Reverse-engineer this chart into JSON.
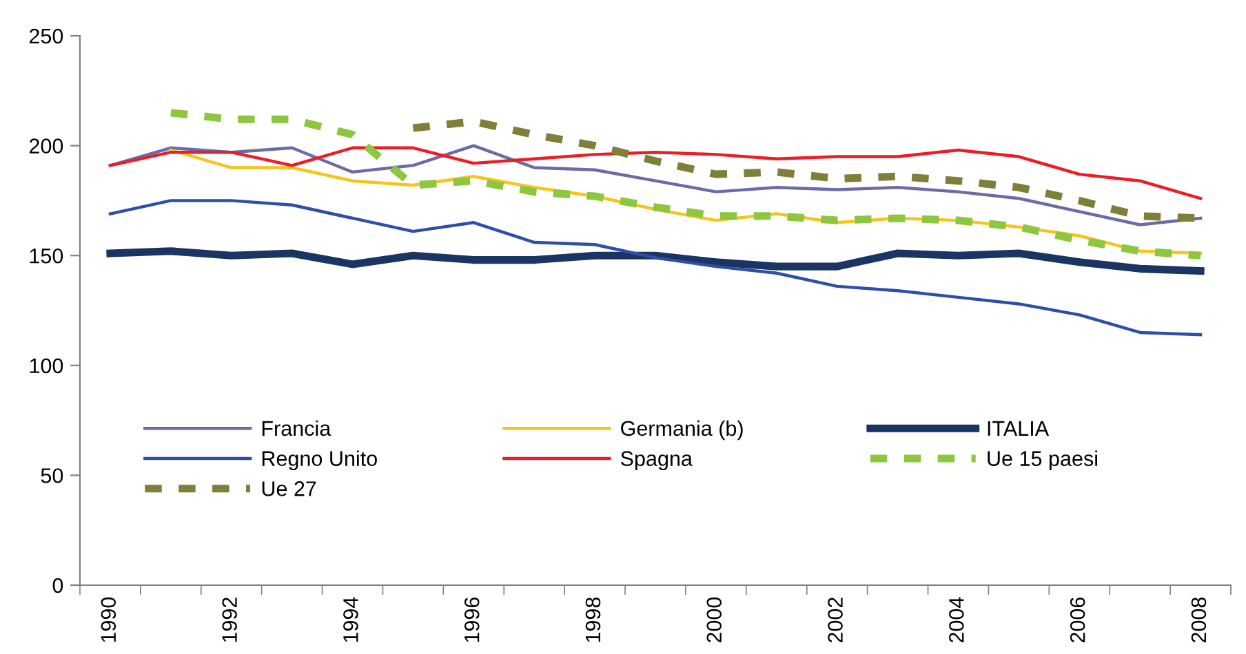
{
  "chart_data": {
    "type": "line",
    "categories": [
      "1990",
      null,
      "1992",
      null,
      "1994",
      null,
      "1996",
      null,
      "1998",
      null,
      "2000",
      null,
      "2002",
      null,
      "2004",
      null,
      "2006",
      null,
      "2008"
    ],
    "series": [
      {
        "name": "Francia",
        "color": "#6b6ba8",
        "values": [
          191,
          199,
          197,
          199,
          188,
          191,
          200,
          190,
          189,
          184,
          179,
          181,
          180,
          181,
          179,
          176,
          170,
          164,
          167
        ]
      },
      {
        "name": "Germania (b)",
        "color": "#f5c518",
        "values": [
          null,
          198,
          190,
          190,
          184,
          182,
          186,
          181,
          177,
          171,
          166,
          169,
          165,
          167,
          166,
          163,
          159,
          152,
          151
        ]
      },
      {
        "name": "ITALIA",
        "color": "#1a3463",
        "values": [
          151,
          152,
          150,
          151,
          146,
          150,
          148,
          148,
          150,
          150,
          147,
          145,
          145,
          151,
          150,
          151,
          147,
          144,
          143
        ]
      },
      {
        "name": "Regno Unito",
        "color": "#2e4fa8",
        "values": [
          169,
          175,
          175,
          173,
          167,
          161,
          165,
          156,
          155,
          149,
          145,
          142,
          136,
          134,
          131,
          128,
          123,
          115,
          114
        ]
      },
      {
        "name": "Spagna",
        "color": "#ee1c25",
        "values": [
          191,
          197,
          197,
          191,
          199,
          199,
          192,
          194,
          196,
          197,
          196,
          194,
          195,
          195,
          198,
          195,
          187,
          184,
          176
        ]
      },
      {
        "name": "Ue 15 paesi",
        "color": "#8dc63f",
        "line_style": "dashed",
        "values": [
          null,
          215,
          212,
          212,
          205,
          182,
          184,
          179,
          177,
          172,
          168,
          168,
          166,
          167,
          166,
          163,
          157,
          152,
          150
        ]
      },
      {
        "name": "Ue 27",
        "color": "#7f7f3a",
        "line_style": "dashed",
        "values": [
          null,
          null,
          null,
          null,
          null,
          208,
          211,
          205,
          200,
          193,
          187,
          188,
          185,
          186,
          184,
          181,
          175,
          168,
          167
        ]
      }
    ],
    "ylim": [
      0,
      250
    ],
    "yticks": [
      0,
      50,
      100,
      150,
      200,
      250
    ],
    "grid": false,
    "legend": "bottom left",
    "marker": "none"
  }
}
